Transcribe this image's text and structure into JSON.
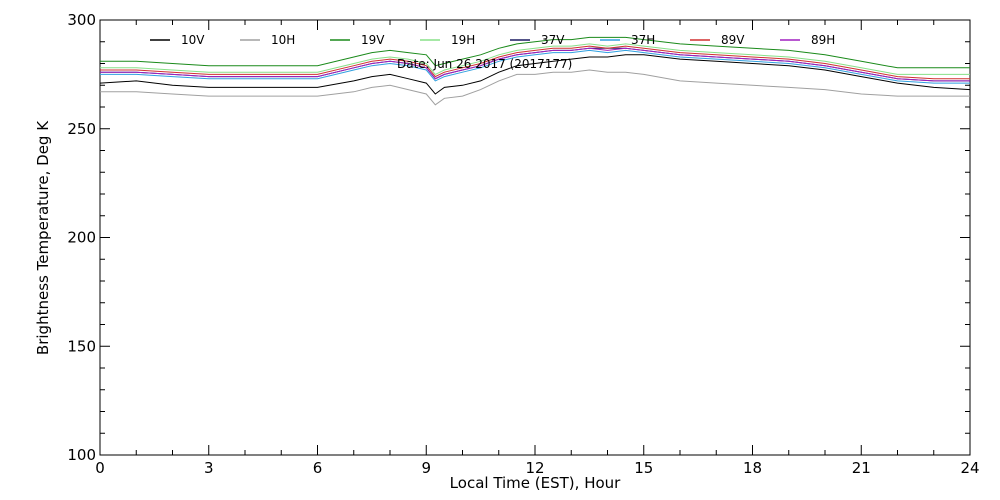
{
  "chart_data": {
    "type": "line",
    "title": "",
    "annotation": "Date: Jun 26 2017 (2017177)",
    "xlabel": "Local Time (EST), Hour",
    "ylabel": "Brightness Temperature, Deg K",
    "xlim": [
      0,
      24
    ],
    "ylim": [
      100,
      300
    ],
    "xticks": [
      0,
      3,
      6,
      9,
      12,
      15,
      18,
      21,
      24
    ],
    "yticks": [
      100,
      150,
      200,
      250,
      300
    ],
    "grid": false,
    "legend_position": "top",
    "x": [
      0,
      1,
      2,
      3,
      4,
      5,
      6,
      7,
      7.5,
      8,
      8.5,
      9,
      9.25,
      9.5,
      10,
      10.5,
      11,
      11.5,
      12,
      12.5,
      13,
      13.5,
      14,
      14.5,
      15,
      16,
      17,
      18,
      19,
      20,
      21,
      22,
      23,
      24
    ],
    "series": [
      {
        "name": "10V",
        "color": "#000000",
        "values": [
          271,
          272,
          270,
          269,
          269,
          269,
          269,
          272,
          274,
          275,
          273,
          271,
          266,
          269,
          270,
          272,
          276,
          279,
          280,
          281,
          282,
          283,
          283,
          284,
          284,
          282,
          281,
          280,
          279,
          277,
          274,
          271,
          269,
          268
        ]
      },
      {
        "name": "10H",
        "color": "#a0a0a0",
        "values": [
          267,
          267,
          266,
          265,
          265,
          265,
          265,
          267,
          269,
          270,
          268,
          266,
          261,
          264,
          265,
          268,
          272,
          275,
          275,
          276,
          276,
          277,
          276,
          276,
          275,
          272,
          271,
          270,
          269,
          268,
          266,
          265,
          265,
          265
        ]
      },
      {
        "name": "19V",
        "color": "#1a8a1a",
        "values": [
          281,
          281,
          280,
          279,
          279,
          279,
          279,
          283,
          285,
          286,
          285,
          284,
          279,
          280,
          282,
          284,
          287,
          289,
          290,
          291,
          291,
          292,
          292,
          292,
          291,
          289,
          288,
          287,
          286,
          284,
          281,
          278,
          278,
          278
        ]
      },
      {
        "name": "19H",
        "color": "#88e088",
        "values": [
          278,
          278,
          277,
          276,
          276,
          276,
          276,
          280,
          282,
          283,
          282,
          280,
          275,
          277,
          279,
          281,
          284,
          286,
          287,
          288,
          288,
          289,
          288,
          289,
          288,
          286,
          285,
          284,
          283,
          281,
          278,
          275,
          275,
          275
        ]
      },
      {
        "name": "37V",
        "color": "#1a1a60",
        "values": [
          276,
          276,
          275,
          274,
          274,
          274,
          274,
          278,
          280,
          281,
          280,
          278,
          273,
          275,
          277,
          279,
          282,
          284,
          285,
          286,
          286,
          287,
          287,
          287,
          286,
          284,
          283,
          282,
          281,
          279,
          276,
          273,
          272,
          272
        ]
      },
      {
        "name": "37H",
        "color": "#30a0e0",
        "values": [
          275,
          275,
          274,
          273,
          273,
          273,
          273,
          277,
          279,
          280,
          279,
          277,
          272,
          274,
          276,
          278,
          281,
          283,
          284,
          285,
          285,
          286,
          285,
          286,
          285,
          283,
          282,
          281,
          280,
          278,
          275,
          272,
          271,
          271
        ]
      },
      {
        "name": "89V",
        "color": "#d03030",
        "values": [
          277,
          277,
          276,
          275,
          275,
          275,
          275,
          279,
          281,
          282,
          281,
          279,
          274,
          276,
          278,
          280,
          283,
          285,
          286,
          287,
          287,
          288,
          287,
          288,
          287,
          285,
          284,
          283,
          282,
          280,
          277,
          274,
          273,
          273
        ]
      },
      {
        "name": "89H",
        "color": "#a020c0",
        "values": [
          276,
          276,
          275,
          274,
          274,
          274,
          274,
          278,
          280,
          281,
          280,
          278,
          273,
          275,
          277,
          279,
          282,
          284,
          285,
          286,
          286,
          287,
          286,
          287,
          286,
          284,
          283,
          282,
          281,
          279,
          276,
          273,
          272,
          272
        ]
      }
    ]
  }
}
